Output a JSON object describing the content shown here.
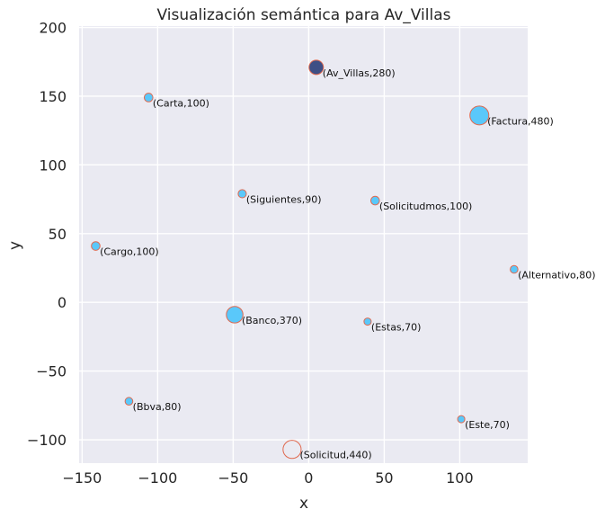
{
  "chart_data": {
    "type": "scatter",
    "title": "Visualización semántica para Av_Villas",
    "xlabel": "x",
    "ylabel": "y",
    "xlim": [
      -152,
      145
    ],
    "ylim": [
      -117,
      201
    ],
    "xticks": [
      -150,
      -100,
      -50,
      0,
      50,
      100
    ],
    "yticks": [
      -100,
      -50,
      0,
      50,
      100,
      150,
      200
    ],
    "grid": true,
    "colors": {
      "background": "#eaeaf2",
      "marker_fill": "#5ac8fa",
      "marker_edge": "#e06a50",
      "highlight_fill": "#3e4f85",
      "grid": "#ffffff"
    },
    "points": [
      {
        "word": "Av_Villas",
        "value": 280,
        "x": 5,
        "y": 171,
        "label": "(Av_Villas,280)",
        "highlight": true
      },
      {
        "word": "Carta",
        "value": 100,
        "x": -106,
        "y": 149,
        "label": "(Carta,100)"
      },
      {
        "word": "Factura",
        "value": 480,
        "x": 113,
        "y": 136,
        "label": "(Factura,480)"
      },
      {
        "word": "Siguientes",
        "value": 90,
        "x": -44,
        "y": 79,
        "label": "(Siguientes,90)"
      },
      {
        "word": "Solicitudmos",
        "value": 100,
        "x": 44,
        "y": 74,
        "label": "(Solicitudmos,100)"
      },
      {
        "word": "Cargo",
        "value": 100,
        "x": -141,
        "y": 41,
        "label": "(Cargo,100)"
      },
      {
        "word": "Alternativo",
        "value": 80,
        "x": 136,
        "y": 24,
        "label": "(Alternativo,80)"
      },
      {
        "word": "Banco",
        "value": 370,
        "x": -49,
        "y": -9,
        "label": "(Banco,370)"
      },
      {
        "word": "Estas",
        "value": 70,
        "x": 39,
        "y": -14,
        "label": "(Estas,70)"
      },
      {
        "word": "Bbva",
        "value": 80,
        "x": -119,
        "y": -72,
        "label": "(Bbva,80)"
      },
      {
        "word": "Este",
        "value": 70,
        "x": 101,
        "y": -85,
        "label": "(Este,70)"
      },
      {
        "word": "Solicitud",
        "value": 440,
        "x": -11,
        "y": -107,
        "label": "(Solicitud,440)",
        "hollow": true
      }
    ]
  }
}
